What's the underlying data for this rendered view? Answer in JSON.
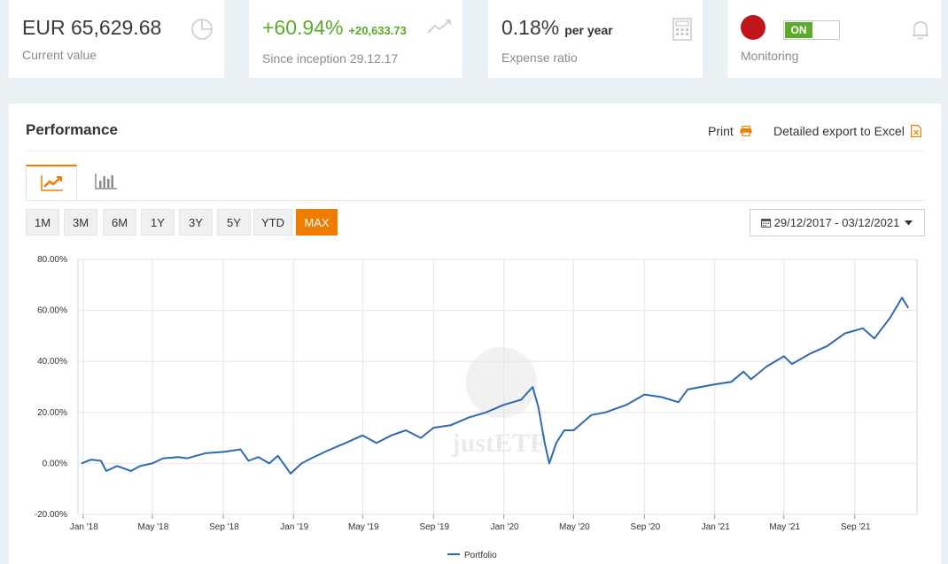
{
  "cards": {
    "current_value": {
      "value": "EUR 65,629.68",
      "label": "Current value"
    },
    "performance": {
      "value": "+60.94%",
      "delta": "+20,633.73",
      "label": "Since inception 29.12.17"
    },
    "expense": {
      "value": "0.18%",
      "unit": "per year",
      "label": "Expense ratio"
    },
    "monitoring": {
      "toggle": "ON",
      "label": "Monitoring"
    }
  },
  "panel": {
    "title": "Performance",
    "print_label": "Print",
    "export_label": "Detailed export to Excel"
  },
  "ranges": [
    "1M",
    "3M",
    "6M",
    "1Y",
    "3Y",
    "5Y",
    "YTD",
    "MAX"
  ],
  "active_range": "MAX",
  "date_range": "29/12/2017 - 03/12/2021",
  "colors": {
    "accent": "#f07c00",
    "line": "#2c6bb0",
    "positive": "#5aab2a",
    "alert": "#c0161b"
  },
  "chart_data": {
    "type": "line",
    "title": "",
    "xlabel": "",
    "ylabel": "",
    "ylim": [
      -20,
      80
    ],
    "yticks": [
      "-20.00%",
      "0.00%",
      "20.00%",
      "40.00%",
      "60.00%",
      "80.00%"
    ],
    "xticks": [
      "Jan '18",
      "May '18",
      "Sep '18",
      "Jan '19",
      "May '19",
      "Sep '19",
      "Jan '20",
      "May '20",
      "Sep '20",
      "Jan '21",
      "May '21",
      "Sep '21"
    ],
    "grid": true,
    "legend": "bottom-center",
    "watermark": "justETF",
    "series": [
      {
        "name": "Portfolio",
        "points": [
          [
            "2017-12-29",
            0
          ],
          [
            "2018-01-15",
            1.5
          ],
          [
            "2018-02-01",
            1
          ],
          [
            "2018-02-10",
            -3
          ],
          [
            "2018-03-01",
            -1
          ],
          [
            "2018-03-25",
            -3
          ],
          [
            "2018-04-10",
            -1
          ],
          [
            "2018-05-01",
            0
          ],
          [
            "2018-05-20",
            2
          ],
          [
            "2018-06-15",
            2.5
          ],
          [
            "2018-07-01",
            2
          ],
          [
            "2018-08-01",
            4
          ],
          [
            "2018-09-01",
            4.5
          ],
          [
            "2018-10-01",
            5.5
          ],
          [
            "2018-10-15",
            1
          ],
          [
            "2018-11-01",
            2.5
          ],
          [
            "2018-11-20",
            0
          ],
          [
            "2018-12-05",
            3
          ],
          [
            "2018-12-27",
            -4
          ],
          [
            "2019-01-15",
            0
          ],
          [
            "2019-02-01",
            2
          ],
          [
            "2019-03-01",
            5
          ],
          [
            "2019-04-01",
            8
          ],
          [
            "2019-05-01",
            11
          ],
          [
            "2019-05-25",
            8
          ],
          [
            "2019-06-20",
            11
          ],
          [
            "2019-07-15",
            13
          ],
          [
            "2019-08-10",
            10
          ],
          [
            "2019-09-01",
            14
          ],
          [
            "2019-10-01",
            15
          ],
          [
            "2019-11-01",
            18
          ],
          [
            "2019-12-01",
            20
          ],
          [
            "2020-01-01",
            23
          ],
          [
            "2020-01-31",
            25
          ],
          [
            "2020-02-20",
            30
          ],
          [
            "2020-03-01",
            22
          ],
          [
            "2020-03-12",
            8
          ],
          [
            "2020-03-20",
            0
          ],
          [
            "2020-04-01",
            8
          ],
          [
            "2020-04-15",
            13
          ],
          [
            "2020-05-01",
            13
          ],
          [
            "2020-06-01",
            19
          ],
          [
            "2020-06-25",
            20
          ],
          [
            "2020-08-01",
            23
          ],
          [
            "2020-09-01",
            27
          ],
          [
            "2020-10-01",
            26
          ],
          [
            "2020-10-30",
            24
          ],
          [
            "2020-11-15",
            29
          ],
          [
            "2021-01-01",
            31
          ],
          [
            "2021-01-30",
            32
          ],
          [
            "2021-02-20",
            36
          ],
          [
            "2021-03-05",
            33
          ],
          [
            "2021-04-01",
            38
          ],
          [
            "2021-05-01",
            42
          ],
          [
            "2021-05-15",
            39
          ],
          [
            "2021-06-15",
            43
          ],
          [
            "2021-07-15",
            46
          ],
          [
            "2021-08-15",
            51
          ],
          [
            "2021-09-15",
            53
          ],
          [
            "2021-10-05",
            49
          ],
          [
            "2021-11-01",
            57
          ],
          [
            "2021-11-22",
            65
          ],
          [
            "2021-12-03",
            60.94
          ]
        ]
      }
    ]
  }
}
